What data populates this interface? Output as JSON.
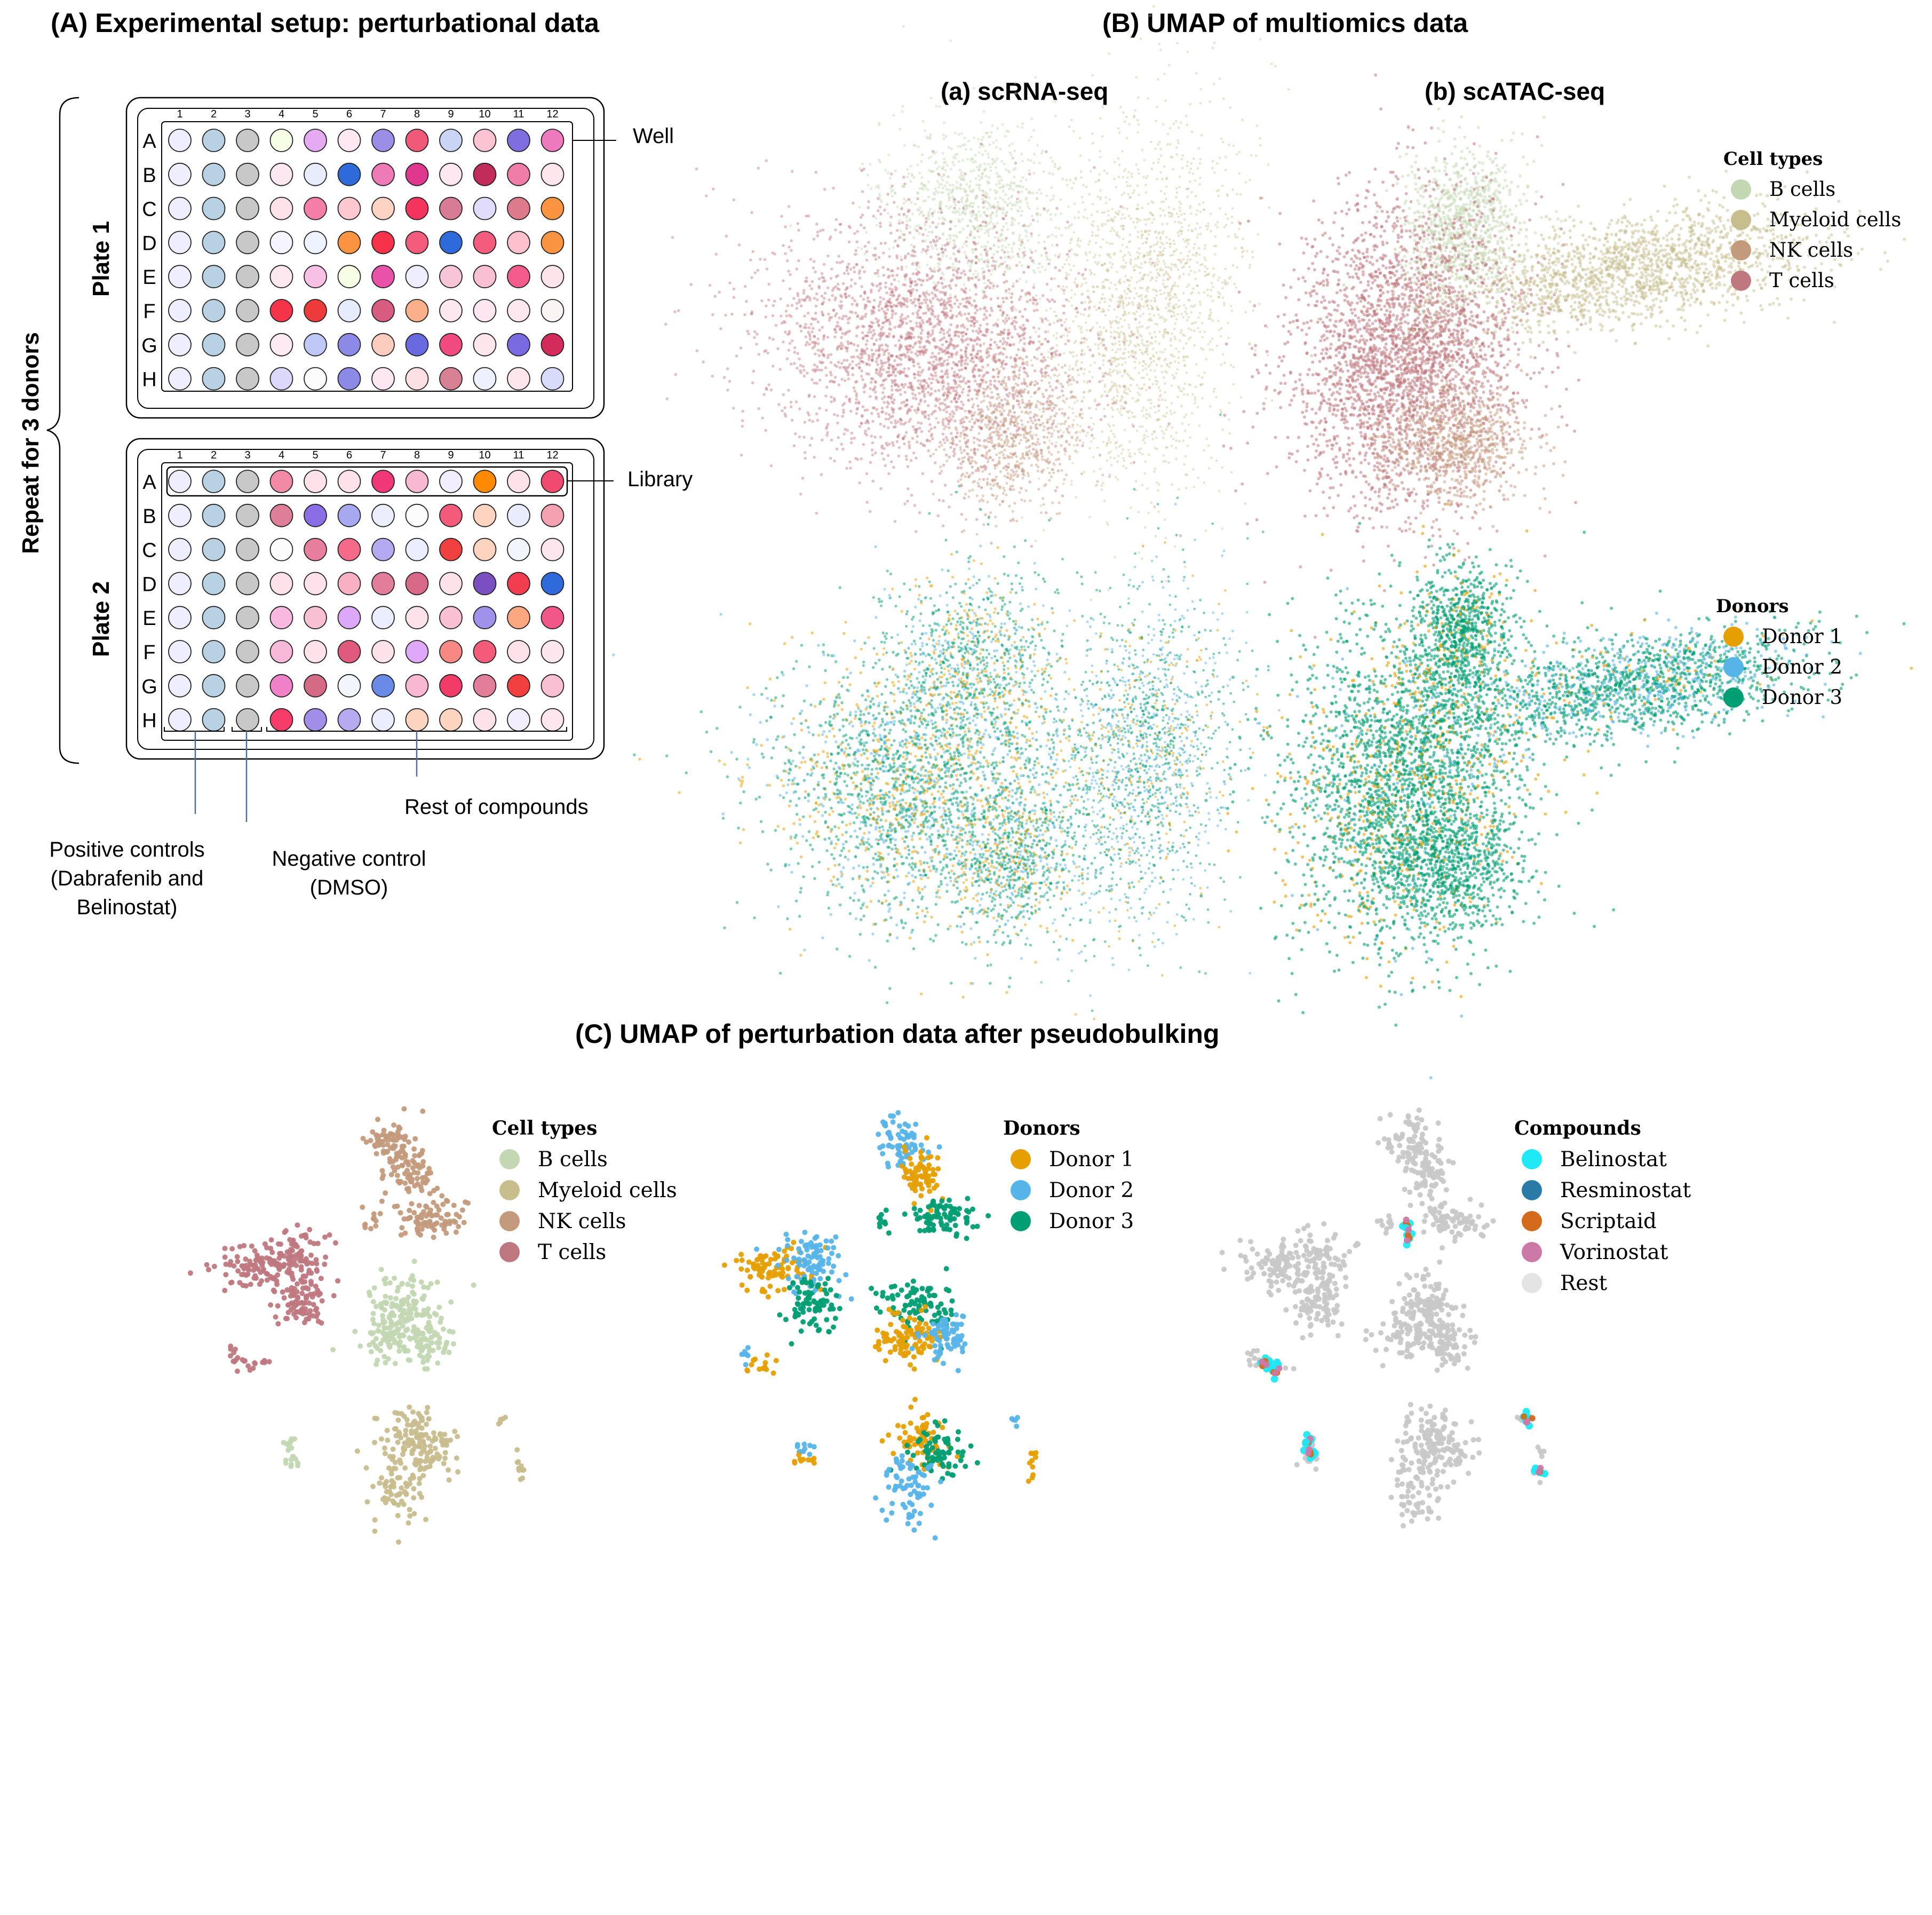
{
  "colors": {
    "b_cells": "#c3d7b2",
    "myeloid_cells": "#c8bd8d",
    "nk_cells": "#c49a7c",
    "t_cells": "#c07880",
    "donor_1": "#e69f00",
    "donor_2": "#56b4e9",
    "donor_3": "#009e73",
    "belinostat": "#1ee9f5",
    "resminostat": "#2a7aa8",
    "scriptaid": "#d46a1c",
    "vorinostat": "#cc79a7",
    "rest": "#e4e4e4"
  },
  "panel_a": {
    "title": "(A) Experimental setup: perturbational data",
    "repeat_label": "Repeat for 3 donors",
    "plates": [
      {
        "label": "Plate 1",
        "columns": [
          "1",
          "2",
          "3",
          "4",
          "5",
          "6",
          "7",
          "8",
          "9",
          "10",
          "11",
          "12"
        ],
        "rows": [
          "A",
          "B",
          "C",
          "D",
          "E",
          "F",
          "G",
          "H"
        ],
        "wells": [
          [
            "#eeeefe",
            "#b8d2e4",
            "#c8c8c8",
            "#f6ffe6",
            "#e6aaf2",
            "#ffe8f2",
            "#9a8ee6",
            "#f05a78",
            "#cad4f4",
            "#fcc4d2",
            "#7e6ee0",
            "#ee7abe"
          ],
          [
            "#eeeefe",
            "#b8d2e4",
            "#c8c8c8",
            "#fde8f2",
            "#e8ecfc",
            "#2f6ada",
            "#ee7ab8",
            "#e0388e",
            "#fde8f2",
            "#c22c5a",
            "#f07ca8",
            "#fde6ec"
          ],
          [
            "#eeeefe",
            "#b8d2e4",
            "#c8c8c8",
            "#fde2ea",
            "#f47ea8",
            "#fdc8d0",
            "#fdd4c4",
            "#f5345e",
            "#d87c96",
            "#e2dcfc",
            "#dd7a8c",
            "#fb9440"
          ],
          [
            "#eeeefe",
            "#b8d2e4",
            "#c8c8c8",
            "#f6f4fe",
            "#eef4ff",
            "#fb9440",
            "#f7324a",
            "#f45c7e",
            "#2f6ada",
            "#f45c7e",
            "#fdc0cc",
            "#fb9440"
          ],
          [
            "#eeeefe",
            "#b8d2e4",
            "#c8c8c8",
            "#fde8f0",
            "#f8c0e4",
            "#f6ffe6",
            "#e852a8",
            "#eeeefe",
            "#f8c4d8",
            "#f8c0d2",
            "#f45c8e",
            "#fde4ea"
          ],
          [
            "#eeeefe",
            "#b8d2e4",
            "#c8c8c8",
            "#f5344a",
            "#ee3a3a",
            "#e6ecfc",
            "#d85c80",
            "#fbb08a",
            "#fde8f0",
            "#fde6f0",
            "#fde8f0",
            "#fbf4f4"
          ],
          [
            "#eeeefe",
            "#b8d2e4",
            "#c8c8c8",
            "#fdeaf2",
            "#c0c8f8",
            "#8c8ae6",
            "#fcccbe",
            "#6a6ae0",
            "#f04a80",
            "#fde6ec",
            "#7a6ae2",
            "#d42c5a"
          ],
          [
            "#eeeefe",
            "#b8d2e4",
            "#c8c8c8",
            "#dcd8fc",
            "#fcfcfc",
            "#8c8ae6",
            "#fde8f2",
            "#fde0e4",
            "#d88094",
            "#eef0fe",
            "#fde6ec",
            "#d8dcfa"
          ]
        ]
      },
      {
        "label": "Plate 2",
        "columns": [
          "1",
          "2",
          "3",
          "4",
          "5",
          "6",
          "7",
          "8",
          "9",
          "10",
          "11",
          "12"
        ],
        "rows": [
          "A",
          "B",
          "C",
          "D",
          "E",
          "F",
          "G",
          "H"
        ],
        "wells": [
          [
            "#eeeefe",
            "#b8d2e4",
            "#c8c8c8",
            "#f28aa6",
            "#fde2ea",
            "#fde2ea",
            "#f03878",
            "#f8b8d2",
            "#f2eefe",
            "#ff8a00",
            "#fde2ea",
            "#f04a70"
          ],
          [
            "#eeeefe",
            "#b8d2e4",
            "#c8c8c8",
            "#de7e98",
            "#8a6ee6",
            "#a8a8f0",
            "#eceefe",
            "#fcfcfc",
            "#f45a7a",
            "#fdd4c0",
            "#e8ecfc",
            "#f4a2b2"
          ],
          [
            "#eeeefe",
            "#b8d2e4",
            "#c8c8c8",
            "#fcfcfc",
            "#e87e9e",
            "#f46a88",
            "#b4aaf2",
            "#ebeefe",
            "#f04040",
            "#fdd4c0",
            "#f2f6fc",
            "#fde6ee"
          ],
          [
            "#eeeefe",
            "#b8d2e4",
            "#c8c8c8",
            "#fde2ea",
            "#fde2ea",
            "#f8b0c2",
            "#e27e9a",
            "#d86a88",
            "#fde2ea",
            "#7a50c0",
            "#f23c50",
            "#2f6ada"
          ],
          [
            "#eeeefe",
            "#b8d2e4",
            "#c8c8c8",
            "#f8b8e0",
            "#f8c0d2",
            "#dca8f8",
            "#ebeefe",
            "#fde2ea",
            "#f8c0d2",
            "#a092ea",
            "#fba880",
            "#f2578a"
          ],
          [
            "#eeeefe",
            "#b8d2e4",
            "#c8c8c8",
            "#f8b8d8",
            "#fde2ea",
            "#e05a7e",
            "#fde2ea",
            "#e0a8f8",
            "#f78884",
            "#f45a7a",
            "#fde2ea",
            "#fde6ee"
          ],
          [
            "#eeeefe",
            "#b8d2e4",
            "#c8c8c8",
            "#f080c8",
            "#d46a86",
            "#f2f6fc",
            "#6a8ae8",
            "#f8b8d2",
            "#f23c68",
            "#e27e9a",
            "#f24040",
            "#f8c0d2"
          ],
          [
            "#eeeefe",
            "#b8d2e4",
            "#c8c8c8",
            "#f73c6a",
            "#a28ee8",
            "#b8aaf0",
            "#ebeefe",
            "#fdd4c0",
            "#fdd4c0",
            "#fde2ea",
            "#f2eefe",
            "#fde6ee"
          ]
        ]
      }
    ],
    "callouts": {
      "well": "Well",
      "library": "Library",
      "rest": "Rest of compounds",
      "positive": [
        "Positive controls",
        "(Dabrafenib and",
        "Belinostat)"
      ],
      "negative": [
        "Negative control",
        "(DMSO)"
      ]
    }
  },
  "panel_b": {
    "title": "(B) UMAP of multiomics data",
    "subtitle_rna": "(a) scRNA-seq",
    "subtitle_atac": "(b) scATAC-seq",
    "legend_cell_types": {
      "title": "Cell types",
      "items": [
        {
          "label": "B cells",
          "color_key": "b_cells"
        },
        {
          "label": "Myeloid cells",
          "color_key": "myeloid_cells"
        },
        {
          "label": "NK cells",
          "color_key": "nk_cells"
        },
        {
          "label": "T cells",
          "color_key": "t_cells"
        }
      ]
    },
    "legend_donors": {
      "title": "Donors",
      "items": [
        {
          "label": "Donor 1",
          "color_key": "donor_1"
        },
        {
          "label": "Donor 2",
          "color_key": "donor_2"
        },
        {
          "label": "Donor 3",
          "color_key": "donor_3"
        }
      ]
    }
  },
  "panel_c": {
    "title": "(C) UMAP of perturbation data after pseudobulking",
    "legend_cell_types": {
      "title": "Cell types",
      "items": [
        {
          "label": "B cells",
          "color_key": "b_cells"
        },
        {
          "label": "Myeloid cells",
          "color_key": "myeloid_cells"
        },
        {
          "label": "NK cells",
          "color_key": "nk_cells"
        },
        {
          "label": "T cells",
          "color_key": "t_cells"
        }
      ]
    },
    "legend_donors": {
      "title": "Donors",
      "items": [
        {
          "label": "Donor 1",
          "color_key": "donor_1"
        },
        {
          "label": "Donor 2",
          "color_key": "donor_2"
        },
        {
          "label": "Donor 3",
          "color_key": "donor_3"
        }
      ]
    },
    "legend_compounds": {
      "title": "Compounds",
      "items": [
        {
          "label": "Belinostat",
          "color_key": "belinostat"
        },
        {
          "label": "Resminostat",
          "color_key": "resminostat"
        },
        {
          "label": "Scriptaid",
          "color_key": "scriptaid"
        },
        {
          "label": "Vorinostat",
          "color_key": "vorinostat"
        },
        {
          "label": "Rest",
          "color_key": "rest"
        }
      ]
    }
  }
}
